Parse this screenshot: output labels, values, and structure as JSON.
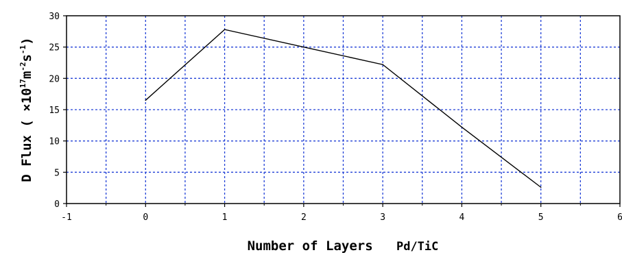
{
  "chart_data": {
    "type": "line",
    "xlabel": "Number of Layers",
    "xlabel_suffix": "Pd/TiC",
    "ylabel": "D Flux ( ×10",
    "ylabel_exp": "17",
    "ylabel_unit_a": "m",
    "ylabel_unit_a_exp": "-2",
    "ylabel_unit_b": "s",
    "ylabel_unit_b_exp": "-1",
    "ylabel_close": ")",
    "xlim": [
      -1,
      6
    ],
    "ylim": [
      0,
      30
    ],
    "x_ticks": [
      -1,
      0,
      1,
      2,
      3,
      4,
      5,
      6
    ],
    "y_ticks": [
      0,
      5,
      10,
      15,
      20,
      25,
      30
    ],
    "grid": true,
    "grid_color": "#1f3fd6",
    "line_color": "#000000",
    "series": [
      {
        "x": [
          0,
          1,
          2,
          3,
          4,
          5
        ],
        "y": [
          16.5,
          27.8,
          25.0,
          22.2,
          12.2,
          2.6
        ]
      }
    ]
  }
}
